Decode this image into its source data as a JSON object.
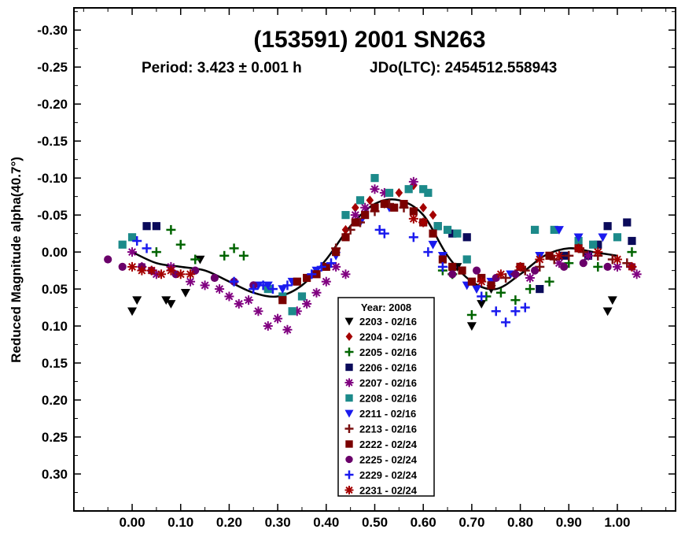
{
  "chart_data": {
    "type": "scatter",
    "title": "(153591) 2001 SN263",
    "subtitle": {
      "period": "Period: 3.423 ± 0.001 h",
      "epoch": "JDo(LTC): 2454512.558943"
    },
    "ylabel": "Reduced Magnitude alpha(40.7°)",
    "xlabel": "",
    "xlim": [
      -0.12,
      1.12
    ],
    "ylim": [
      -0.33,
      0.35
    ],
    "y_inverted": true,
    "x_ticks": [
      "0.00",
      "0.10",
      "0.20",
      "0.30",
      "0.40",
      "0.50",
      "0.60",
      "0.70",
      "0.80",
      "0.90",
      "1.00"
    ],
    "y_ticks": [
      "-0.30",
      "-0.25",
      "-0.20",
      "-0.15",
      "-0.10",
      "-0.05",
      "0.00",
      "0.05",
      "0.10",
      "0.15",
      "0.20",
      "0.25",
      "0.30"
    ],
    "grid": false,
    "legend": {
      "title": "Year: 2008",
      "placement": "bottom-center"
    },
    "fit_curve": {
      "x": [
        0.0,
        0.05,
        0.1,
        0.15,
        0.2,
        0.25,
        0.3,
        0.35,
        0.4,
        0.45,
        0.5,
        0.55,
        0.6,
        0.65,
        0.7,
        0.75,
        0.8,
        0.85,
        0.9,
        0.95,
        1.0
      ],
      "y": [
        0.0,
        0.015,
        0.02,
        0.025,
        0.04,
        0.055,
        0.06,
        0.045,
        0.01,
        -0.035,
        -0.065,
        -0.07,
        -0.05,
        0.005,
        0.04,
        0.05,
        0.03,
        0.005,
        -0.005,
        0.0,
        0.005
      ]
    },
    "series": [
      {
        "name": "2203 - 02/16",
        "marker": "triangle-down",
        "color": "#000000",
        "x": [
          0.0,
          0.01,
          0.07,
          0.08,
          0.11,
          0.14,
          0.67,
          0.7,
          0.72,
          0.74,
          0.98,
          0.99
        ],
        "y": [
          0.08,
          0.065,
          0.065,
          0.07,
          0.055,
          0.01,
          0.02,
          0.1,
          0.07,
          0.05,
          0.08,
          0.065
        ]
      },
      {
        "name": "2204 - 02/16",
        "marker": "diamond",
        "color": "#a40000",
        "x": [
          0.44,
          0.46,
          0.49,
          0.52,
          0.55,
          0.58,
          0.6,
          0.62
        ],
        "y": [
          -0.03,
          -0.06,
          -0.07,
          -0.065,
          -0.08,
          -0.09,
          -0.06,
          -0.05
        ]
      },
      {
        "name": "2205 - 02/16",
        "marker": "plus",
        "color": "#006400",
        "x": [
          0.05,
          0.08,
          0.1,
          0.13,
          0.19,
          0.21,
          0.23,
          0.64,
          0.66,
          0.7,
          0.73,
          0.76,
          0.79,
          0.82,
          0.86,
          0.9,
          0.96,
          1.03
        ],
        "y": [
          0.0,
          -0.03,
          -0.01,
          0.01,
          0.005,
          -0.005,
          0.005,
          0.025,
          0.03,
          0.085,
          0.06,
          0.055,
          0.065,
          0.05,
          0.04,
          0.015,
          0.02,
          0.0
        ]
      },
      {
        "name": "2206 - 02/16",
        "marker": "square",
        "color": "#0a0a5a",
        "x": [
          0.03,
          0.05,
          0.63,
          0.66,
          0.69,
          0.84,
          0.89,
          0.94,
          0.96,
          0.98,
          1.02,
          1.03
        ],
        "y": [
          -0.035,
          -0.035,
          -0.035,
          -0.025,
          -0.02,
          0.05,
          0.005,
          0.005,
          -0.01,
          -0.035,
          -0.04,
          -0.015
        ]
      },
      {
        "name": "2207 - 02/16",
        "marker": "asterisk",
        "color": "#800080",
        "x": [
          0.0,
          0.02,
          0.05,
          0.08,
          0.12,
          0.15,
          0.18,
          0.2,
          0.22,
          0.24,
          0.26,
          0.28,
          0.3,
          0.32,
          0.34,
          0.36,
          0.38,
          0.4,
          0.42,
          0.44,
          0.46,
          0.48,
          0.5,
          0.52,
          0.58,
          0.82,
          0.88,
          0.94,
          1.0,
          1.04
        ],
        "y": [
          0.0,
          0.02,
          0.03,
          0.02,
          0.04,
          0.045,
          0.05,
          0.06,
          0.07,
          0.065,
          0.08,
          0.1,
          0.09,
          0.105,
          0.08,
          0.07,
          0.055,
          0.04,
          0.02,
          0.03,
          -0.05,
          -0.06,
          -0.085,
          -0.08,
          -0.095,
          0.035,
          0.015,
          0.005,
          0.02,
          0.03
        ]
      },
      {
        "name": "2208 - 02/16",
        "marker": "square",
        "color": "#1c8a8a",
        "x": [
          -0.02,
          0.0,
          0.28,
          0.31,
          0.33,
          0.35,
          0.44,
          0.47,
          0.5,
          0.53,
          0.57,
          0.6,
          0.61,
          0.63,
          0.65,
          0.67,
          0.69,
          0.83,
          0.87,
          0.92,
          0.95,
          1.0
        ],
        "y": [
          -0.01,
          -0.02,
          0.05,
          0.06,
          0.08,
          0.06,
          -0.05,
          -0.07,
          -0.1,
          -0.08,
          -0.085,
          -0.085,
          -0.08,
          -0.035,
          -0.03,
          -0.025,
          0.01,
          -0.03,
          -0.03,
          -0.015,
          -0.01,
          -0.02
        ]
      },
      {
        "name": "2211 - 02/16",
        "marker": "triangle-down",
        "color": "#1a1aee",
        "x": [
          0.26,
          0.28,
          0.31,
          0.33,
          0.38,
          0.42,
          0.47,
          0.53,
          0.62,
          0.64,
          0.66,
          0.69,
          0.71,
          0.74,
          0.78,
          0.84,
          0.88,
          0.92,
          0.97
        ],
        "y": [
          0.045,
          0.045,
          0.05,
          0.04,
          0.025,
          0.005,
          -0.04,
          -0.06,
          -0.01,
          0.005,
          0.025,
          0.045,
          0.05,
          0.04,
          0.03,
          0.005,
          -0.03,
          -0.02,
          -0.02
        ]
      },
      {
        "name": "2213 - 02/16",
        "marker": "plus",
        "color": "#7a1010",
        "x": [
          0.42,
          0.45,
          0.47,
          0.5,
          0.53,
          0.56,
          0.77,
          0.79,
          0.81,
          0.84,
          0.87,
          0.9,
          0.93,
          0.96,
          0.99,
          1.02
        ],
        "y": [
          -0.005,
          -0.03,
          -0.04,
          -0.055,
          -0.065,
          -0.06,
          0.035,
          0.03,
          0.025,
          0.02,
          0.01,
          0.005,
          0.0,
          0.005,
          0.01,
          0.015
        ]
      },
      {
        "name": "2222 - 02/24",
        "marker": "square",
        "color": "#7a0000",
        "x": [
          0.31,
          0.34,
          0.36,
          0.38,
          0.4,
          0.42,
          0.44,
          0.46,
          0.48,
          0.5,
          0.52,
          0.54,
          0.56,
          0.58,
          0.6,
          0.62,
          0.64,
          0.66,
          0.68,
          0.7,
          0.72,
          0.74,
          0.8,
          0.86,
          0.92
        ],
        "y": [
          0.065,
          0.04,
          0.035,
          0.03,
          0.02,
          0.0,
          -0.02,
          -0.04,
          -0.05,
          -0.06,
          -0.065,
          -0.06,
          -0.065,
          -0.055,
          -0.04,
          -0.025,
          0.01,
          0.02,
          0.025,
          0.04,
          0.035,
          0.045,
          0.02,
          0.005,
          -0.005
        ]
      },
      {
        "name": "2225 - 02/24",
        "marker": "circle",
        "color": "#6a006a",
        "x": [
          -0.05,
          -0.02,
          0.02,
          0.04,
          0.09,
          0.13,
          0.17,
          0.21,
          0.25,
          0.66,
          0.71,
          0.75,
          0.79,
          0.83,
          0.89,
          0.93,
          0.98,
          1.03
        ],
        "y": [
          0.01,
          0.02,
          0.02,
          0.025,
          0.03,
          0.025,
          0.035,
          0.04,
          0.045,
          0.03,
          0.025,
          0.035,
          0.03,
          0.025,
          0.02,
          0.015,
          0.02,
          0.02
        ]
      },
      {
        "name": "2229 - 02/24",
        "marker": "plus",
        "color": "#1a1aee",
        "x": [
          0.01,
          0.03,
          0.21,
          0.25,
          0.27,
          0.29,
          0.32,
          0.37,
          0.39,
          0.41,
          0.51,
          0.52,
          0.58,
          0.61,
          0.64,
          0.72,
          0.75,
          0.77,
          0.79,
          0.81
        ],
        "y": [
          -0.015,
          -0.005,
          0.04,
          0.05,
          0.045,
          0.05,
          0.045,
          0.03,
          0.02,
          0.015,
          -0.03,
          -0.025,
          -0.02,
          0.0,
          0.02,
          0.06,
          0.08,
          0.095,
          0.08,
          0.075
        ]
      },
      {
        "name": "2231 - 02/24",
        "marker": "asterisk",
        "color": "#a40000",
        "x": [
          0.0,
          0.02,
          0.04,
          0.06,
          0.08,
          0.1,
          0.12,
          0.58,
          0.6,
          0.72,
          0.76,
          0.8,
          0.84,
          0.88,
          0.92,
          0.96,
          1.0,
          1.03
        ],
        "y": [
          0.02,
          0.025,
          0.025,
          0.03,
          0.025,
          0.03,
          0.03,
          -0.045,
          -0.04,
          0.04,
          0.03,
          0.02,
          0.01,
          0.005,
          -0.005,
          0.0,
          0.01,
          0.02
        ]
      }
    ]
  }
}
